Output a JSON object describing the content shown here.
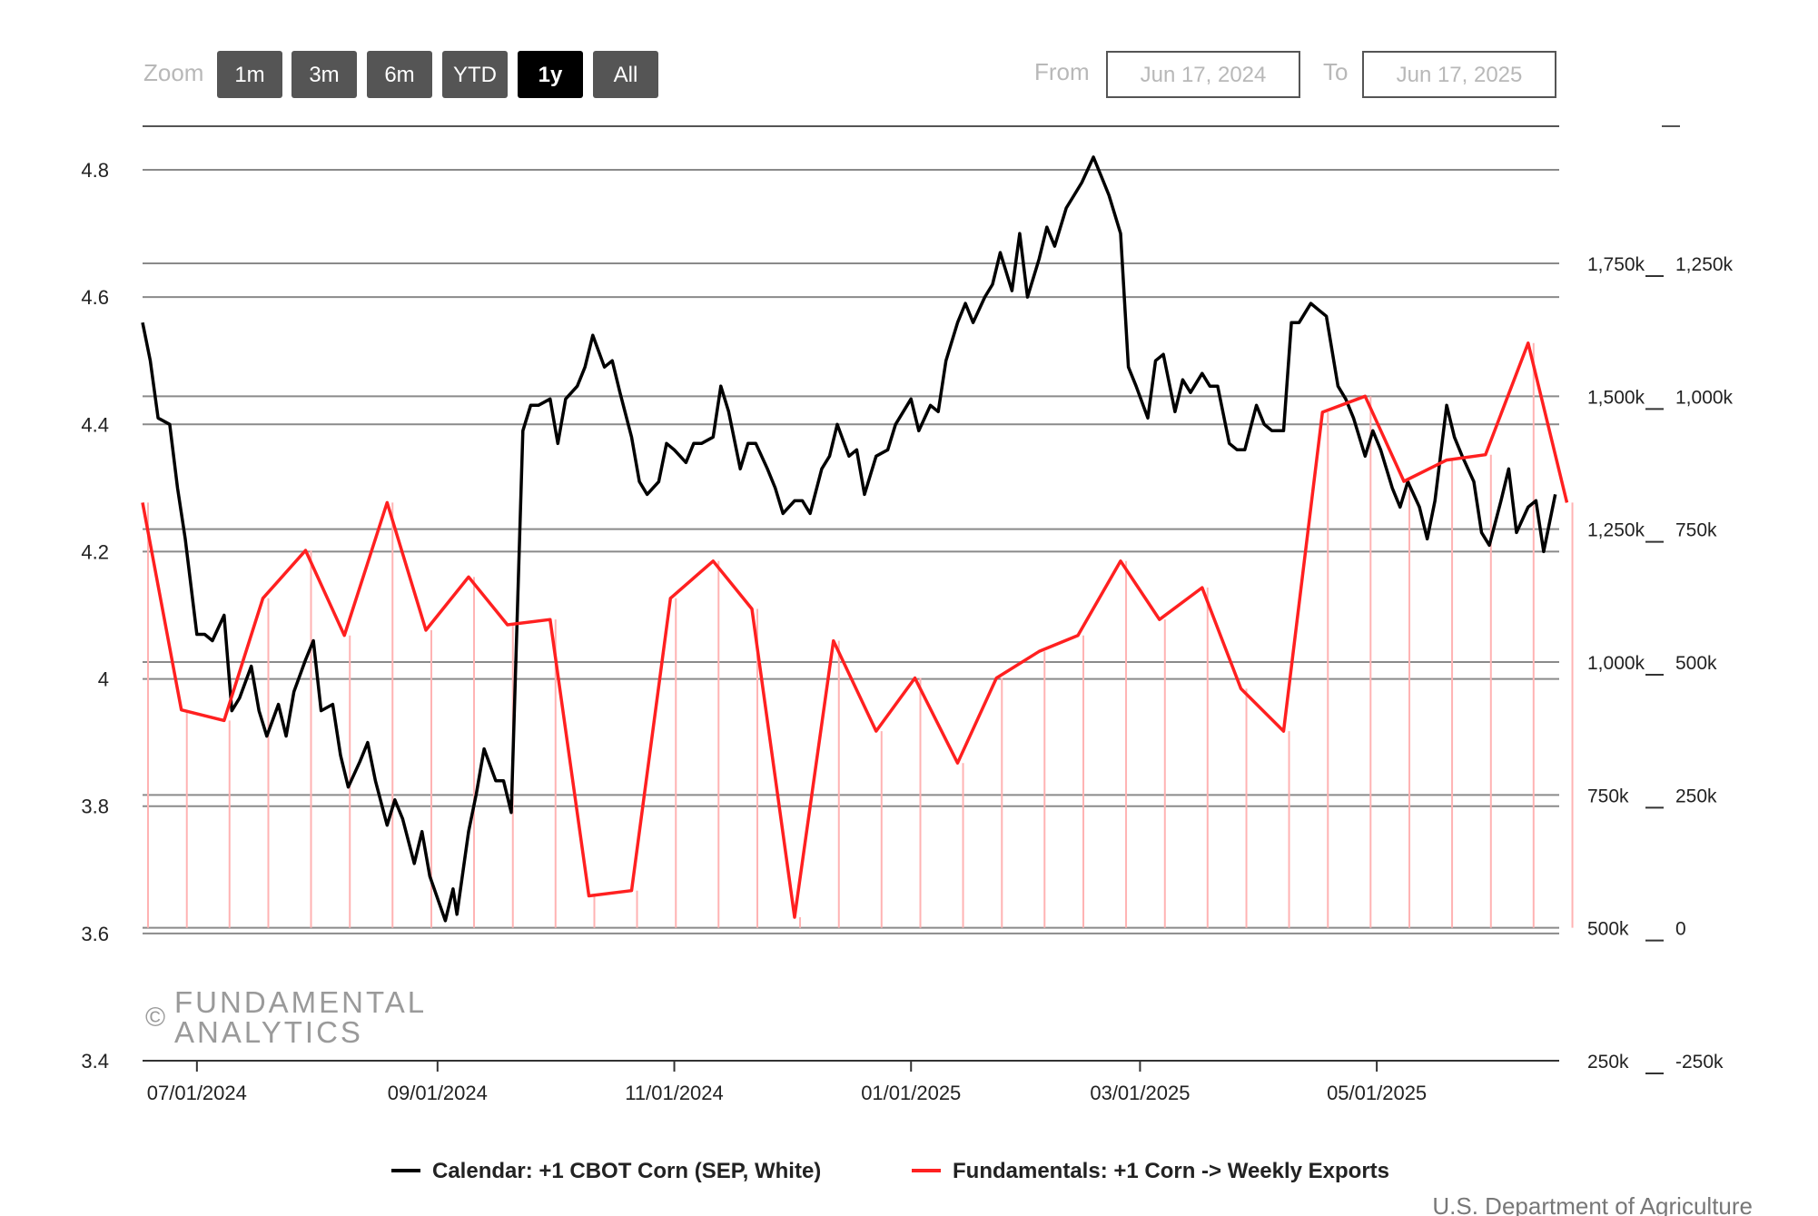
{
  "toolbar": {
    "zoom_label": "Zoom",
    "zoom_buttons": [
      {
        "label": "1m",
        "active": false
      },
      {
        "label": "3m",
        "active": false
      },
      {
        "label": "6m",
        "active": false
      },
      {
        "label": "YTD",
        "active": false
      },
      {
        "label": "1y",
        "active": true
      },
      {
        "label": "All",
        "active": false
      }
    ],
    "from_label": "From",
    "from_value": "Jun 17, 2024",
    "to_label": "To",
    "to_value": "Jun 17, 2025"
  },
  "watermark": {
    "symbol": "©",
    "line1": "FUNDAMENTAL",
    "line2": "ANALYTICS"
  },
  "source": "U.S. Department of Agriculture",
  "colors": {
    "price": "#000000",
    "exports": "#ff2020",
    "volume": "#ffb3b3",
    "button": "#555555",
    "button_active": "#000000"
  },
  "chart_data": {
    "type": "line",
    "grid": true,
    "legend_position": "bottom",
    "x_axis": {
      "type": "datetime",
      "range": [
        "2024-06-17",
        "2025-06-17"
      ],
      "tick_labels": [
        "07/01/2024",
        "09/01/2024",
        "11/01/2024",
        "01/01/2025",
        "03/01/2025",
        "05/01/2025"
      ],
      "tick_dates": [
        "2024-07-01",
        "2024-09-01",
        "2024-11-01",
        "2025-01-01",
        "2025-03-01",
        "2025-05-01"
      ]
    },
    "y_left": {
      "range": [
        3.4,
        4.8
      ],
      "ticks": [
        3.4,
        3.6,
        3.8,
        4.0,
        4.2,
        4.4,
        4.6,
        4.8
      ],
      "tick_labels": [
        "3.4",
        "3.6",
        "3.8",
        "4",
        "4.2",
        "4.4",
        "4.6",
        "4.8"
      ]
    },
    "y_right_outer": {
      "range": [
        250000,
        1750000
      ],
      "ticks": [
        250000,
        500000,
        750000,
        1000000,
        1250000,
        1500000,
        1750000
      ],
      "tick_labels": [
        "250k",
        "500k",
        "750k",
        "1,000k",
        "1,250k",
        "1,500k",
        "1,750k"
      ]
    },
    "y_right_inner": {
      "range": [
        -250000,
        1250000
      ],
      "ticks": [
        -250000,
        0,
        250000,
        500000,
        750000,
        1000000,
        1250000
      ],
      "tick_labels": [
        "-250k",
        "0",
        "250k",
        "500k",
        "750k",
        "1,000k",
        "1,250k"
      ]
    },
    "series": [
      {
        "name": "Calendar: +1 CBOT Corn (SEP, White)",
        "axis": "y_left",
        "points": [
          [
            "2024-06-17",
            4.56
          ],
          [
            "2024-06-19",
            4.5
          ],
          [
            "2024-06-21",
            4.41
          ],
          [
            "2024-06-24",
            4.4
          ],
          [
            "2024-06-26",
            4.3
          ],
          [
            "2024-06-28",
            4.22
          ],
          [
            "2024-07-01",
            4.07
          ],
          [
            "2024-07-03",
            4.07
          ],
          [
            "2024-07-05",
            4.06
          ],
          [
            "2024-07-08",
            4.1
          ],
          [
            "2024-07-10",
            3.95
          ],
          [
            "2024-07-12",
            3.97
          ],
          [
            "2024-07-15",
            4.02
          ],
          [
            "2024-07-17",
            3.95
          ],
          [
            "2024-07-19",
            3.91
          ],
          [
            "2024-07-22",
            3.96
          ],
          [
            "2024-07-24",
            3.91
          ],
          [
            "2024-07-26",
            3.98
          ],
          [
            "2024-07-29",
            4.03
          ],
          [
            "2024-07-31",
            4.06
          ],
          [
            "2024-08-02",
            3.95
          ],
          [
            "2024-08-05",
            3.96
          ],
          [
            "2024-08-07",
            3.88
          ],
          [
            "2024-08-09",
            3.83
          ],
          [
            "2024-08-12",
            3.87
          ],
          [
            "2024-08-14",
            3.9
          ],
          [
            "2024-08-16",
            3.84
          ],
          [
            "2024-08-19",
            3.77
          ],
          [
            "2024-08-21",
            3.81
          ],
          [
            "2024-08-23",
            3.78
          ],
          [
            "2024-08-26",
            3.71
          ],
          [
            "2024-08-28",
            3.76
          ],
          [
            "2024-08-30",
            3.69
          ],
          [
            "2024-09-03",
            3.62
          ],
          [
            "2024-09-05",
            3.67
          ],
          [
            "2024-09-06",
            3.63
          ],
          [
            "2024-09-09",
            3.76
          ],
          [
            "2024-09-11",
            3.82
          ],
          [
            "2024-09-13",
            3.89
          ],
          [
            "2024-09-16",
            3.84
          ],
          [
            "2024-09-18",
            3.84
          ],
          [
            "2024-09-20",
            3.79
          ],
          [
            "2024-09-23",
            4.39
          ],
          [
            "2024-09-25",
            4.43
          ],
          [
            "2024-09-27",
            4.43
          ],
          [
            "2024-09-30",
            4.44
          ],
          [
            "2024-10-02",
            4.37
          ],
          [
            "2024-10-04",
            4.44
          ],
          [
            "2024-10-07",
            4.46
          ],
          [
            "2024-10-09",
            4.49
          ],
          [
            "2024-10-11",
            4.54
          ],
          [
            "2024-10-14",
            4.49
          ],
          [
            "2024-10-16",
            4.5
          ],
          [
            "2024-10-18",
            4.45
          ],
          [
            "2024-10-21",
            4.38
          ],
          [
            "2024-10-23",
            4.31
          ],
          [
            "2024-10-25",
            4.29
          ],
          [
            "2024-10-28",
            4.31
          ],
          [
            "2024-10-30",
            4.37
          ],
          [
            "2024-11-01",
            4.36
          ],
          [
            "2024-11-04",
            4.34
          ],
          [
            "2024-11-06",
            4.37
          ],
          [
            "2024-11-08",
            4.37
          ],
          [
            "2024-11-11",
            4.38
          ],
          [
            "2024-11-13",
            4.46
          ],
          [
            "2024-11-15",
            4.42
          ],
          [
            "2024-11-18",
            4.33
          ],
          [
            "2024-11-20",
            4.37
          ],
          [
            "2024-11-22",
            4.37
          ],
          [
            "2024-11-25",
            4.33
          ],
          [
            "2024-11-27",
            4.3
          ],
          [
            "2024-11-29",
            4.26
          ],
          [
            "2024-12-02",
            4.28
          ],
          [
            "2024-12-04",
            4.28
          ],
          [
            "2024-12-06",
            4.26
          ],
          [
            "2024-12-09",
            4.33
          ],
          [
            "2024-12-11",
            4.35
          ],
          [
            "2024-12-13",
            4.4
          ],
          [
            "2024-12-16",
            4.35
          ],
          [
            "2024-12-18",
            4.36
          ],
          [
            "2024-12-20",
            4.29
          ],
          [
            "2024-12-23",
            4.35
          ],
          [
            "2024-12-26",
            4.36
          ],
          [
            "2024-12-28",
            4.4
          ],
          [
            "2025-01-01",
            4.44
          ],
          [
            "2025-01-03",
            4.39
          ],
          [
            "2025-01-06",
            4.43
          ],
          [
            "2025-01-08",
            4.42
          ],
          [
            "2025-01-10",
            4.5
          ],
          [
            "2025-01-13",
            4.56
          ],
          [
            "2025-01-15",
            4.59
          ],
          [
            "2025-01-17",
            4.56
          ],
          [
            "2025-01-20",
            4.6
          ],
          [
            "2025-01-22",
            4.62
          ],
          [
            "2025-01-24",
            4.67
          ],
          [
            "2025-01-27",
            4.61
          ],
          [
            "2025-01-29",
            4.7
          ],
          [
            "2025-01-31",
            4.6
          ],
          [
            "2025-02-03",
            4.66
          ],
          [
            "2025-02-05",
            4.71
          ],
          [
            "2025-02-07",
            4.68
          ],
          [
            "2025-02-10",
            4.74
          ],
          [
            "2025-02-12",
            4.76
          ],
          [
            "2025-02-14",
            4.78
          ],
          [
            "2025-02-17",
            4.82
          ],
          [
            "2025-02-19",
            4.79
          ],
          [
            "2025-02-21",
            4.76
          ],
          [
            "2025-02-24",
            4.7
          ],
          [
            "2025-02-26",
            4.49
          ],
          [
            "2025-02-28",
            4.46
          ],
          [
            "2025-03-03",
            4.41
          ],
          [
            "2025-03-05",
            4.5
          ],
          [
            "2025-03-07",
            4.51
          ],
          [
            "2025-03-10",
            4.42
          ],
          [
            "2025-03-12",
            4.47
          ],
          [
            "2025-03-14",
            4.45
          ],
          [
            "2025-03-17",
            4.48
          ],
          [
            "2025-03-19",
            4.46
          ],
          [
            "2025-03-21",
            4.46
          ],
          [
            "2025-03-24",
            4.37
          ],
          [
            "2025-03-26",
            4.36
          ],
          [
            "2025-03-28",
            4.36
          ],
          [
            "2025-03-31",
            4.43
          ],
          [
            "2025-04-02",
            4.4
          ],
          [
            "2025-04-04",
            4.39
          ],
          [
            "2025-04-07",
            4.39
          ],
          [
            "2025-04-09",
            4.56
          ],
          [
            "2025-04-11",
            4.56
          ],
          [
            "2025-04-14",
            4.59
          ],
          [
            "2025-04-16",
            4.58
          ],
          [
            "2025-04-18",
            4.57
          ],
          [
            "2025-04-21",
            4.46
          ],
          [
            "2025-04-23",
            4.44
          ],
          [
            "2025-04-25",
            4.41
          ],
          [
            "2025-04-28",
            4.35
          ],
          [
            "2025-04-30",
            4.39
          ],
          [
            "2025-05-02",
            4.36
          ],
          [
            "2025-05-05",
            4.3
          ],
          [
            "2025-05-07",
            4.27
          ],
          [
            "2025-05-09",
            4.31
          ],
          [
            "2025-05-12",
            4.27
          ],
          [
            "2025-05-14",
            4.22
          ],
          [
            "2025-05-16",
            4.28
          ],
          [
            "2025-05-19",
            4.43
          ],
          [
            "2025-05-21",
            4.38
          ],
          [
            "2025-05-23",
            4.35
          ],
          [
            "2025-05-26",
            4.31
          ],
          [
            "2025-05-28",
            4.23
          ],
          [
            "2025-05-30",
            4.21
          ],
          [
            "2025-06-02",
            4.28
          ],
          [
            "2025-06-04",
            4.33
          ],
          [
            "2025-06-06",
            4.23
          ],
          [
            "2025-06-09",
            4.27
          ],
          [
            "2025-06-11",
            4.28
          ],
          [
            "2025-06-13",
            4.2
          ],
          [
            "2025-06-16",
            4.29
          ]
        ]
      },
      {
        "name": "Fundamentals: +1 Corn -> Weekly Exports",
        "axis": "y_right_outer",
        "points": [
          [
            "2024-06-17",
            1300000
          ],
          [
            "2024-06-27",
            910000
          ],
          [
            "2024-07-08",
            890000
          ],
          [
            "2024-07-18",
            1120000
          ],
          [
            "2024-07-29",
            1210000
          ],
          [
            "2024-08-08",
            1050000
          ],
          [
            "2024-08-19",
            1300000
          ],
          [
            "2024-08-29",
            1060000
          ],
          [
            "2024-09-09",
            1160000
          ],
          [
            "2024-09-19",
            1070000
          ],
          [
            "2024-09-30",
            1080000
          ],
          [
            "2024-10-10",
            560000
          ],
          [
            "2024-10-21",
            570000
          ],
          [
            "2024-10-31",
            1120000
          ],
          [
            "2024-11-11",
            1190000
          ],
          [
            "2024-11-21",
            1100000
          ],
          [
            "2024-12-02",
            520000
          ],
          [
            "2024-12-12",
            1040000
          ],
          [
            "2024-12-23",
            870000
          ],
          [
            "2025-01-02",
            970000
          ],
          [
            "2025-01-13",
            810000
          ],
          [
            "2025-01-23",
            970000
          ],
          [
            "2025-02-03",
            1020000
          ],
          [
            "2025-02-13",
            1050000
          ],
          [
            "2025-02-24",
            1190000
          ],
          [
            "2025-03-06",
            1080000
          ],
          [
            "2025-03-17",
            1140000
          ],
          [
            "2025-03-27",
            950000
          ],
          [
            "2025-04-07",
            870000
          ],
          [
            "2025-04-17",
            1470000
          ],
          [
            "2025-04-28",
            1500000
          ],
          [
            "2025-05-08",
            1340000
          ],
          [
            "2025-05-19",
            1380000
          ],
          [
            "2025-05-29",
            1390000
          ],
          [
            "2025-06-09",
            1600000
          ],
          [
            "2025-06-19",
            1300000
          ]
        ]
      }
    ]
  }
}
